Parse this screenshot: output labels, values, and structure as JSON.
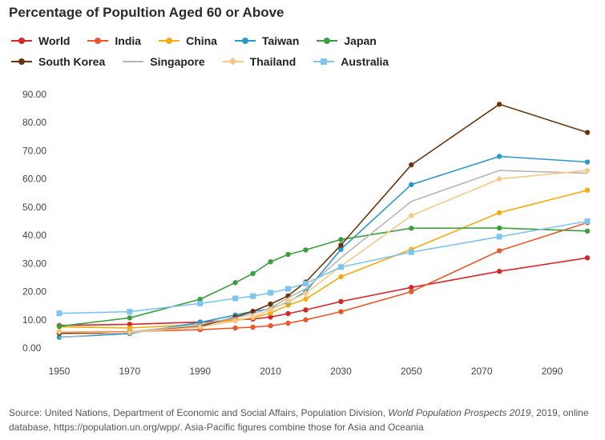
{
  "chart_data": {
    "type": "line",
    "title": "Percentage of Popultion Aged 60 or Above",
    "xlabel": "",
    "ylabel": "",
    "x_ticks": [
      "1950",
      "1970",
      "1990",
      "2010",
      "2030",
      "2050",
      "2070",
      "2090"
    ],
    "y_ticks": [
      "0.00",
      "10.00",
      "20.00",
      "30.00",
      "40.00",
      "50.00",
      "60.00",
      "70.00",
      "80.00",
      "90.00"
    ],
    "xlim": [
      1940,
      2100
    ],
    "ylim": [
      0,
      90
    ],
    "grid": false,
    "legend_position": "top-left",
    "series": [
      {
        "name": "World",
        "color": "#d62728",
        "marker": "circle",
        "x": [
          1950,
          1970,
          1990,
          2000,
          2005,
          2010,
          2015,
          2020,
          2030,
          2050,
          2075,
          2100
        ],
        "values": [
          8.0,
          8.4,
          9.2,
          10.0,
          10.3,
          11.0,
          12.2,
          13.5,
          16.5,
          21.5,
          27.2,
          32.0
        ]
      },
      {
        "name": "India",
        "color": "#e8582b",
        "marker": "circle",
        "x": [
          1950,
          1970,
          1990,
          2000,
          2005,
          2010,
          2015,
          2020,
          2030,
          2050,
          2075,
          2100
        ],
        "values": [
          5.7,
          5.8,
          6.5,
          7.1,
          7.4,
          7.9,
          8.8,
          10.0,
          12.9,
          20.0,
          34.5,
          44.5
        ]
      },
      {
        "name": "China",
        "color": "#f5ac12",
        "marker": "circle",
        "x": [
          1950,
          1970,
          1990,
          2000,
          2005,
          2010,
          2015,
          2020,
          2030,
          2050,
          2075,
          2100
        ],
        "values": [
          7.5,
          7.1,
          8.4,
          10.0,
          10.8,
          12.4,
          15.2,
          17.4,
          25.3,
          35.0,
          48.0,
          56.0
        ]
      },
      {
        "name": "Taiwan",
        "color": "#2a98c8",
        "marker": "circle",
        "x": [
          1950,
          1970,
          1990,
          2000,
          2005,
          2010,
          2015,
          2020,
          2030,
          2050,
          2075,
          2100
        ],
        "values": [
          3.8,
          5.1,
          9.1,
          11.7,
          13.0,
          13.9,
          16.3,
          20.0,
          35.0,
          58.0,
          68.0,
          66.0
        ]
      },
      {
        "name": "Japan",
        "color": "#3a9e3f",
        "marker": "circle",
        "x": [
          1950,
          1970,
          1990,
          2000,
          2005,
          2010,
          2015,
          2020,
          2030,
          2050,
          2075,
          2100
        ],
        "values": [
          7.7,
          10.7,
          17.3,
          23.2,
          26.4,
          30.6,
          33.2,
          34.8,
          38.5,
          42.5,
          42.6,
          41.5
        ]
      },
      {
        "name": "South Korea",
        "color": "#6b3410",
        "marker": "circle",
        "x": [
          1950,
          1970,
          1990,
          2000,
          2005,
          2010,
          2015,
          2020,
          2030,
          2050,
          2075,
          2100
        ],
        "values": [
          5.2,
          5.5,
          7.7,
          11.0,
          13.0,
          15.6,
          18.5,
          23.4,
          36.5,
          65.0,
          86.5,
          76.5
        ]
      },
      {
        "name": "Singapore",
        "color": "#b5b5b5",
        "marker": "none",
        "x": [
          1950,
          1970,
          1990,
          2000,
          2005,
          2010,
          2015,
          2020,
          2030,
          2050,
          2075,
          2100
        ],
        "values": [
          3.7,
          5.7,
          8.4,
          10.7,
          12.1,
          14.2,
          17.8,
          21.0,
          32.0,
          52.0,
          63.0,
          62.0
        ]
      },
      {
        "name": "Thailand",
        "color": "#f6c987",
        "marker": "diamond",
        "x": [
          1950,
          1970,
          1990,
          2000,
          2005,
          2010,
          2015,
          2020,
          2030,
          2050,
          2075,
          2100
        ],
        "values": [
          5.7,
          5.5,
          7.4,
          9.6,
          11.0,
          13.6,
          16.6,
          19.4,
          29.0,
          47.0,
          60.0,
          63.0
        ]
      },
      {
        "name": "Australia",
        "color": "#7fc4ec",
        "marker": "square",
        "x": [
          1950,
          1970,
          1990,
          2000,
          2005,
          2010,
          2015,
          2020,
          2030,
          2050,
          2075,
          2100
        ],
        "values": [
          12.3,
          12.9,
          15.8,
          17.6,
          18.4,
          19.6,
          21.0,
          22.9,
          28.7,
          34.0,
          39.5,
          45.0
        ]
      }
    ]
  },
  "source_note": {
    "prefix": "Source: United Nations, Department of Economic and Social Affairs, Population Division, ",
    "italic": "World Population Prospects 2019",
    "suffix": ", 2019, online database, https://population.un.org/wpp/. Asia-Pacific figures combine those for Asia and Oceania"
  }
}
